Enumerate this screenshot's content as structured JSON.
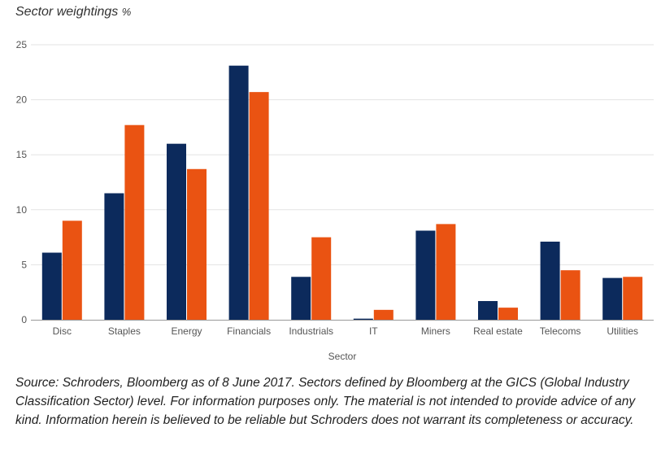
{
  "chart_title": "Sector weightings",
  "chart_unit": "%",
  "source_note": "Source: Schroders, Bloomberg as of 8 June 2017. Sectors defined by Bloomberg at the GICS (Global Industry Classification Sector) level. For information purposes only. The material is not intended to provide advice of any kind. Information herein is believed to be reliable but Schroders does not warrant its completeness or accuracy.",
  "colors": {
    "series_1": "#0c2a5c",
    "series_2": "#ea5312",
    "grid": "#e3e3e3",
    "axis": "#999999",
    "text": "#555555"
  },
  "chart_data": {
    "type": "bar",
    "title": "Sector weightings %",
    "xlabel": "Sector",
    "ylabel": "",
    "ylim": [
      0,
      25
    ],
    "yticks": [
      0,
      5,
      10,
      15,
      20,
      25
    ],
    "grid": true,
    "categories": [
      "Disc",
      "Staples",
      "Energy",
      "Financials",
      "Industrials",
      "IT",
      "Miners",
      "Real estate",
      "Telecoms",
      "Utilities"
    ],
    "series": [
      {
        "values": [
          6.1,
          11.5,
          16.0,
          23.1,
          3.9,
          0.1,
          8.1,
          1.7,
          7.1,
          3.8
        ]
      },
      {
        "values": [
          9.0,
          17.7,
          13.7,
          20.7,
          7.5,
          0.9,
          8.7,
          1.1,
          4.5,
          3.9
        ]
      }
    ]
  }
}
